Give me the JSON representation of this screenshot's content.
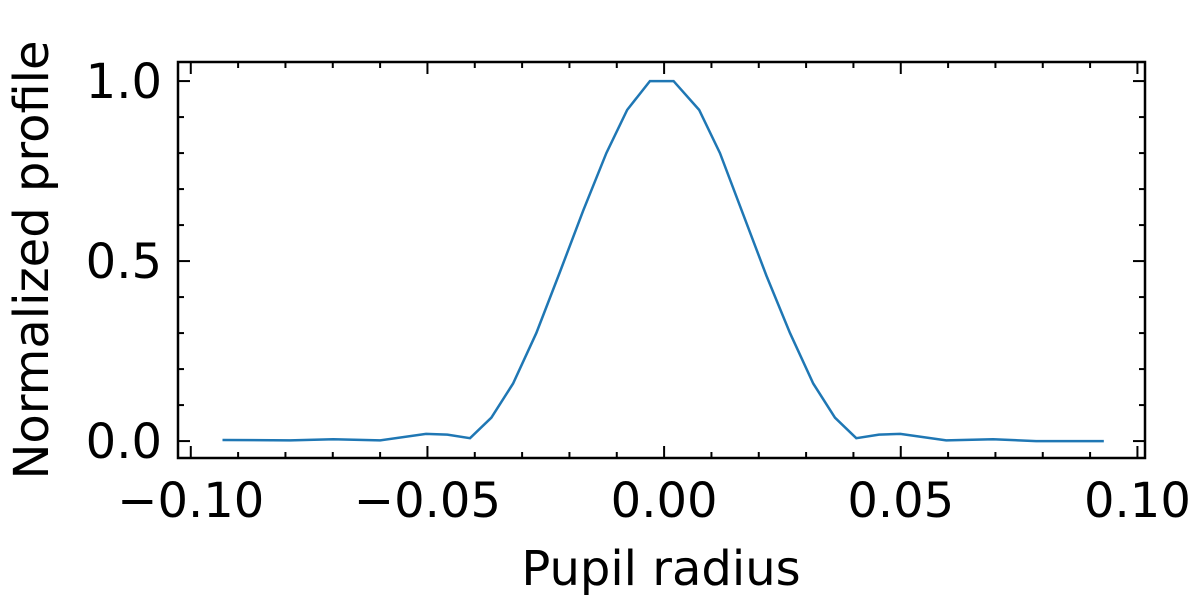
{
  "chart_data": {
    "type": "line",
    "xlabel": "Pupil radius",
    "ylabel": "Normalized profile",
    "x": [
      -0.0933,
      -0.079,
      -0.0699,
      -0.06,
      -0.0503,
      -0.0458,
      -0.041,
      -0.0365,
      -0.0319,
      -0.027,
      -0.022,
      -0.0171,
      -0.0122,
      -0.0078,
      -0.003,
      0.002,
      0.0074,
      0.0118,
      0.0167,
      0.0216,
      0.0266,
      0.0315,
      0.0361,
      0.0406,
      0.0454,
      0.0499,
      0.0596,
      0.0695,
      0.0786,
      0.0929
    ],
    "series": [
      {
        "color": "#1f77b4",
        "values": [
          0.003,
          0.002,
          0.005,
          0.002,
          0.02,
          0.018,
          0.008,
          0.065,
          0.16,
          0.3,
          0.47,
          0.64,
          0.8,
          0.92,
          1.0,
          1.0,
          0.92,
          0.8,
          0.63,
          0.46,
          0.3,
          0.16,
          0.065,
          0.008,
          0.018,
          0.02,
          0.002,
          0.005,
          0.0,
          0.0
        ]
      }
    ],
    "xlim": [
      -0.1027,
      0.1016
    ],
    "ylim": [
      -0.047,
      1.053
    ],
    "xticks": [
      {
        "value": -0.1,
        "label": "−0.10"
      },
      {
        "value": -0.05,
        "label": "−0.05"
      },
      {
        "value": 0,
        "label": "0.00"
      },
      {
        "value": 0.05,
        "label": "0.05"
      },
      {
        "value": 0.1,
        "label": "0.10"
      }
    ],
    "yticks": [
      {
        "value": 0,
        "label": "0.0"
      },
      {
        "value": 0.5,
        "label": "0.5"
      },
      {
        "value": 1,
        "label": "1.0"
      }
    ]
  }
}
